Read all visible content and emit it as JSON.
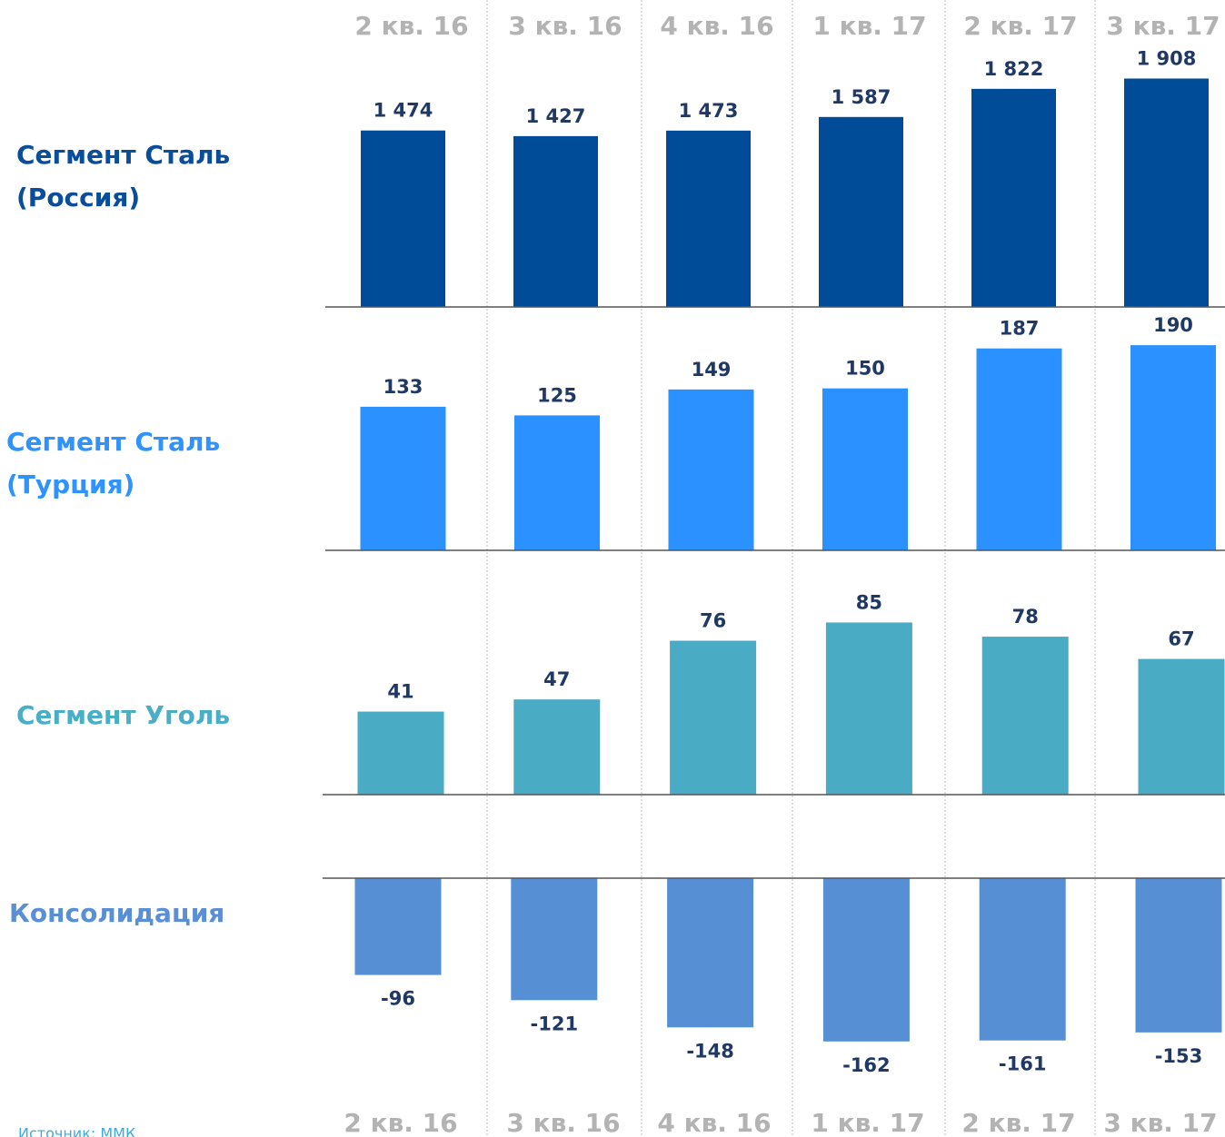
{
  "source": "Источник: ММК",
  "chart_data": [
    {
      "type": "bar",
      "title": [
        "Сегмент Сталь",
        "(Россия)"
      ],
      "title_color": "#0a4d9a",
      "categories": [
        "2 кв. 16",
        "3 кв. 16",
        "4 кв. 16",
        "1 кв. 17",
        "2 кв. 17",
        "3 кв. 17"
      ],
      "values": [
        1474,
        1427,
        1473,
        1587,
        1822,
        1908
      ],
      "value_labels": [
        "1 474",
        "1 427",
        "1 473",
        "1 587",
        "1 822",
        "1 908"
      ],
      "color": "#004c99",
      "ylim": [
        0,
        2200
      ]
    },
    {
      "type": "bar",
      "title": [
        "Сегмент Сталь",
        "(Турция)"
      ],
      "title_color": "#2e93ff",
      "categories": [
        "2 кв. 16",
        "3 кв. 16",
        "4 кв. 16",
        "1 кв. 17",
        "2 кв. 17",
        "3 кв. 17"
      ],
      "values": [
        133,
        125,
        149,
        150,
        187,
        190
      ],
      "color": "#2b91ff",
      "ylim": [
        0,
        215
      ]
    },
    {
      "type": "bar",
      "title": [
        "Сегмент Уголь"
      ],
      "title_color": "#4aaec6",
      "categories": [
        "2 кв. 16",
        "3 кв. 16",
        "4 кв. 16",
        "1 кв. 17",
        "2 кв. 17",
        "3 кв. 17"
      ],
      "values": [
        41,
        47,
        76,
        85,
        78,
        67
      ],
      "color": "#4aabc4",
      "ylim": [
        0,
        100
      ]
    },
    {
      "type": "bar",
      "title": [
        "Консолидация"
      ],
      "title_color": "#5a8fd6",
      "categories": [
        "2 кв. 16",
        "3 кв. 16",
        "4 кв. 16",
        "1 кв. 17",
        "2 кв. 17",
        "3 кв. 17"
      ],
      "values": [
        -96,
        -121,
        -148,
        -162,
        -161,
        -153
      ],
      "color": "#578fd4",
      "ylim": [
        -200,
        0
      ]
    }
  ]
}
